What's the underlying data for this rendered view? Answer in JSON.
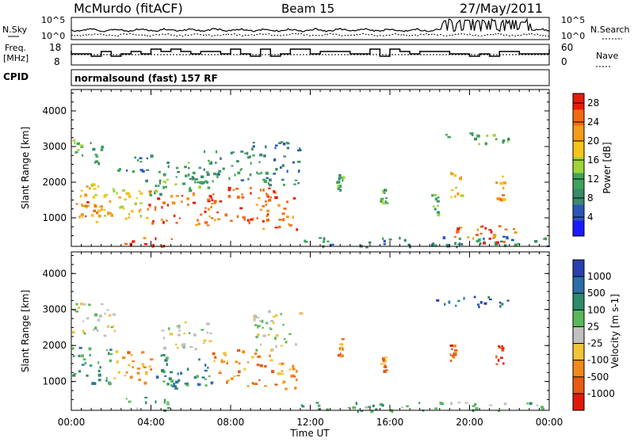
{
  "header": {
    "station": "McMurdo (fitACF)",
    "beam": "Beam 15",
    "date": "27/May/2011"
  },
  "noise_panel": {
    "left_label": "N.Sky",
    "right_label": "N.Search",
    "left_ticks": [
      "10^5",
      "10^0"
    ],
    "right_ticks": [
      "10^5",
      "10^0"
    ]
  },
  "freq_panel": {
    "left_label_line1": "Freq.",
    "left_label_line2": "[MHz]",
    "right_label": "Nave",
    "left_ticks": [
      "18",
      "8"
    ],
    "right_ticks": [
      "60",
      "0"
    ]
  },
  "cpid": {
    "label": "CPID",
    "value": "normalsound (fast) 157 RF"
  },
  "colors": {
    "power_scale": [
      "#1a1aff",
      "#2b57b8",
      "#3a8a6a",
      "#3fa35a",
      "#9fd43a",
      "#f5c518",
      "#f59a1a",
      "#f26a10",
      "#e81c0c"
    ],
    "velocity_scale": [
      "#2a3fb0",
      "#2c6ea8",
      "#2e8a6a",
      "#5bb85a",
      "#c0c0c0",
      "#f2c43a",
      "#f08a1a",
      "#e85a12",
      "#e01a0a"
    ]
  },
  "chart_data": [
    {
      "type": "heatmap",
      "name": "power",
      "xlabel": "Time UT",
      "ylabel": "Slant Range [km]",
      "colorbar_label": "Power [dB]",
      "x_ticks": [
        "00:00",
        "04:00",
        "08:00",
        "12:00",
        "16:00",
        "20:00",
        "00:00"
      ],
      "y_ticks": [
        1000,
        2000,
        3000,
        4000
      ],
      "ylim": [
        200,
        4600
      ],
      "colorbar_ticks": [
        4,
        8,
        12,
        16,
        20,
        24,
        28
      ],
      "colorbar_range": [
        0,
        30
      ],
      "regions": [
        {
          "t0": 0.0,
          "t1": 2.0,
          "r0": 900,
          "r1": 2000,
          "v": 20
        },
        {
          "t0": 0.2,
          "t1": 2.0,
          "r0": 1000,
          "r1": 1500,
          "v": 26
        },
        {
          "t0": 0.0,
          "t1": 1.5,
          "r0": 2400,
          "r1": 3200,
          "v": 10
        },
        {
          "t0": 2.3,
          "t1": 4.0,
          "r0": 2300,
          "r1": 2900,
          "v": 9
        },
        {
          "t0": 2.0,
          "t1": 3.8,
          "r0": 900,
          "r1": 1900,
          "v": 18
        },
        {
          "t0": 2.6,
          "t1": 5.0,
          "r0": 200,
          "r1": 500,
          "v": 28
        },
        {
          "t0": 3.7,
          "t1": 4.7,
          "r0": 1500,
          "r1": 2100,
          "v": 10
        },
        {
          "t0": 3.8,
          "t1": 7.2,
          "r0": 800,
          "r1": 1800,
          "v": 27
        },
        {
          "t0": 4.2,
          "t1": 7.0,
          "r0": 1800,
          "r1": 2600,
          "v": 12
        },
        {
          "t0": 7.0,
          "t1": 10.0,
          "r0": 900,
          "r1": 1900,
          "v": 26
        },
        {
          "t0": 6.0,
          "t1": 9.0,
          "r0": 2000,
          "r1": 3000,
          "v": 9
        },
        {
          "t0": 9.6,
          "t1": 11.3,
          "r0": 700,
          "r1": 1800,
          "v": 28
        },
        {
          "t0": 9.0,
          "t1": 11.5,
          "r0": 1900,
          "r1": 3200,
          "v": 8
        },
        {
          "t0": 11.5,
          "t1": 24.0,
          "r0": 200,
          "r1": 500,
          "v": 6
        },
        {
          "t0": 13.3,
          "t1": 13.6,
          "r0": 1800,
          "r1": 2300,
          "v": 12
        },
        {
          "t0": 15.5,
          "t1": 15.8,
          "r0": 1400,
          "r1": 1900,
          "v": 12
        },
        {
          "t0": 18.0,
          "t1": 18.4,
          "r0": 1100,
          "r1": 1700,
          "v": 12
        },
        {
          "t0": 19.0,
          "t1": 19.6,
          "r0": 1600,
          "r1": 2300,
          "v": 20
        },
        {
          "t0": 21.3,
          "t1": 21.7,
          "r0": 1500,
          "r1": 2200,
          "v": 24
        },
        {
          "t0": 18.0,
          "t1": 22.0,
          "r0": 3100,
          "r1": 3400,
          "v": 12
        },
        {
          "t0": 19.0,
          "t1": 22.5,
          "r0": 300,
          "r1": 800,
          "v": 28
        }
      ]
    },
    {
      "type": "heatmap",
      "name": "velocity",
      "xlabel": "Time UT",
      "ylabel": "Slant Range [km]",
      "colorbar_label": "Velocity [m s-1]",
      "x_ticks": [
        "00:00",
        "04:00",
        "08:00",
        "12:00",
        "16:00",
        "20:00",
        "00:00"
      ],
      "y_ticks": [
        1000,
        2000,
        3000,
        4000
      ],
      "ylim": [
        200,
        4600
      ],
      "colorbar_ticks": [
        "1000",
        "500",
        "100",
        "25",
        "-25",
        "-100",
        "-500",
        "-1000"
      ],
      "regions": [
        {
          "t0": 0.0,
          "t1": 2.0,
          "r0": 900,
          "r1": 2000,
          "v": 2
        },
        {
          "t0": 0.0,
          "t1": 2.2,
          "r0": 2300,
          "r1": 3200,
          "v": 4
        },
        {
          "t0": 2.0,
          "t1": 4.0,
          "r0": 900,
          "r1": 1900,
          "v": 6
        },
        {
          "t0": 2.6,
          "t1": 5.0,
          "r0": 200,
          "r1": 600,
          "v": 3
        },
        {
          "t0": 4.0,
          "t1": 7.0,
          "r0": 800,
          "r1": 1800,
          "v": 2
        },
        {
          "t0": 4.5,
          "t1": 7.0,
          "r0": 1900,
          "r1": 2700,
          "v": 4
        },
        {
          "t0": 7.0,
          "t1": 9.5,
          "r0": 900,
          "r1": 1900,
          "v": 6
        },
        {
          "t0": 9.6,
          "t1": 11.3,
          "r0": 800,
          "r1": 1800,
          "v": 6
        },
        {
          "t0": 9.0,
          "t1": 11.5,
          "r0": 1900,
          "r1": 3000,
          "v": 4
        },
        {
          "t0": 11.5,
          "t1": 24.0,
          "r0": 200,
          "r1": 450,
          "v": 3
        },
        {
          "t0": 13.3,
          "t1": 13.6,
          "r0": 1700,
          "r1": 2200,
          "v": 6
        },
        {
          "t0": 15.5,
          "t1": 15.8,
          "r0": 1300,
          "r1": 1800,
          "v": 6
        },
        {
          "t0": 19.0,
          "t1": 19.5,
          "r0": 1600,
          "r1": 2200,
          "v": 7
        },
        {
          "t0": 21.3,
          "t1": 21.7,
          "r0": 1400,
          "r1": 2100,
          "v": 7
        },
        {
          "t0": 18.0,
          "t1": 22.0,
          "r0": 3100,
          "r1": 3400,
          "v": 1
        }
      ]
    }
  ]
}
